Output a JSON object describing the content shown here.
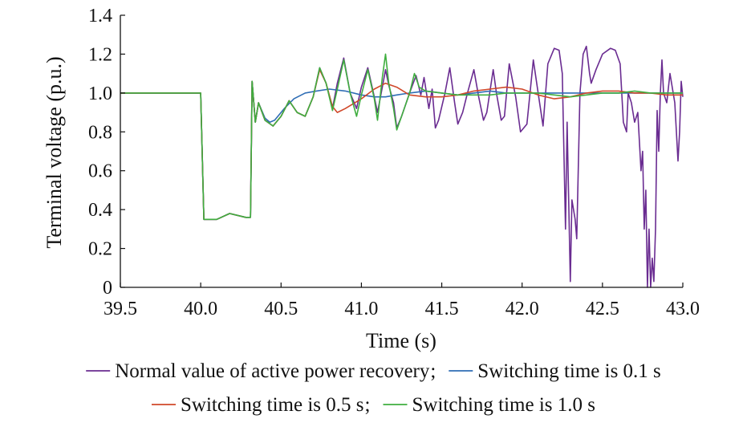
{
  "chart_data": {
    "type": "line",
    "title": "",
    "xlabel": "Time (s)",
    "ylabel": "Terminal voltage (p.u.)",
    "xlim": [
      39.5,
      43.0
    ],
    "ylim": [
      0,
      1.4
    ],
    "x_ticks": [
      "39.5",
      "40.0",
      "40.5",
      "41.0",
      "41.5",
      "42.0",
      "42.5",
      "43.0"
    ],
    "y_ticks": [
      "0",
      "0.2",
      "0.4",
      "0.6",
      "0.8",
      "1.0",
      "1.2",
      "1.4"
    ],
    "grid": false,
    "legend_position": "bottom",
    "legend_separators": [
      ";",
      ";"
    ],
    "series": [
      {
        "name": "Normal value of active power recovery",
        "color": "#6a2c91",
        "points": [
          [
            39.5,
            1.0
          ],
          [
            40.0,
            1.0
          ],
          [
            40.02,
            0.35
          ],
          [
            40.1,
            0.35
          ],
          [
            40.18,
            0.38
          ],
          [
            40.28,
            0.36
          ],
          [
            40.31,
            0.36
          ],
          [
            40.32,
            1.06
          ],
          [
            40.34,
            0.85
          ],
          [
            40.36,
            0.95
          ],
          [
            40.4,
            0.86
          ],
          [
            40.45,
            0.83
          ],
          [
            40.5,
            0.88
          ],
          [
            40.55,
            0.96
          ],
          [
            40.6,
            0.9
          ],
          [
            40.65,
            0.88
          ],
          [
            40.7,
            0.98
          ],
          [
            40.74,
            1.13
          ],
          [
            40.78,
            1.05
          ],
          [
            40.82,
            0.92
          ],
          [
            40.85,
            1.05
          ],
          [
            40.89,
            1.18
          ],
          [
            40.93,
            1.0
          ],
          [
            40.97,
            0.92
          ],
          [
            41.0,
            1.03
          ],
          [
            41.04,
            1.13
          ],
          [
            41.08,
            0.98
          ],
          [
            41.1,
            0.9
          ],
          [
            41.13,
            1.03
          ],
          [
            41.15,
            1.12
          ],
          [
            41.17,
            1.04
          ],
          [
            41.2,
            0.95
          ],
          [
            41.22,
            0.82
          ],
          [
            41.25,
            0.88
          ],
          [
            41.3,
            1.0
          ],
          [
            41.34,
            1.09
          ],
          [
            41.37,
            0.99
          ],
          [
            41.39,
            1.08
          ],
          [
            41.42,
            0.92
          ],
          [
            41.44,
            1.02
          ],
          [
            41.46,
            0.82
          ],
          [
            41.48,
            0.86
          ],
          [
            41.52,
            1.0
          ],
          [
            41.55,
            1.13
          ],
          [
            41.58,
            0.95
          ],
          [
            41.6,
            0.84
          ],
          [
            41.63,
            0.9
          ],
          [
            41.66,
            1.0
          ],
          [
            41.7,
            1.12
          ],
          [
            41.73,
            0.98
          ],
          [
            41.76,
            0.86
          ],
          [
            41.78,
            0.9
          ],
          [
            41.82,
            1.12
          ],
          [
            41.84,
            1.0
          ],
          [
            41.87,
            0.86
          ],
          [
            41.89,
            0.88
          ],
          [
            41.92,
            1.15
          ],
          [
            41.96,
            0.98
          ],
          [
            41.99,
            0.8
          ],
          [
            42.03,
            0.84
          ],
          [
            42.07,
            1.17
          ],
          [
            42.1,
            1.0
          ],
          [
            42.13,
            0.83
          ],
          [
            42.16,
            1.15
          ],
          [
            42.2,
            1.23
          ],
          [
            42.23,
            1.22
          ],
          [
            42.25,
            1.1
          ],
          [
            42.27,
            0.3
          ],
          [
            42.28,
            0.85
          ],
          [
            42.3,
            0.03
          ],
          [
            42.31,
            0.45
          ],
          [
            42.33,
            0.35
          ],
          [
            42.34,
            0.25
          ],
          [
            42.36,
            1.0
          ],
          [
            42.38,
            1.2
          ],
          [
            42.4,
            1.24
          ],
          [
            42.42,
            1.1
          ],
          [
            42.43,
            1.05
          ],
          [
            42.46,
            1.12
          ],
          [
            42.5,
            1.2
          ],
          [
            42.55,
            1.23
          ],
          [
            42.58,
            1.22
          ],
          [
            42.61,
            1.15
          ],
          [
            42.63,
            0.85
          ],
          [
            42.65,
            0.8
          ],
          [
            42.66,
            1.0
          ],
          [
            42.68,
            0.95
          ],
          [
            42.7,
            0.85
          ],
          [
            42.72,
            0.9
          ],
          [
            42.74,
            0.6
          ],
          [
            42.75,
            0.7
          ],
          [
            42.76,
            0.3
          ],
          [
            42.77,
            0.5
          ],
          [
            42.78,
            0.0
          ],
          [
            42.79,
            0.3
          ],
          [
            42.8,
            0.0
          ],
          [
            42.81,
            0.15
          ],
          [
            42.82,
            0.03
          ],
          [
            42.83,
            0.3
          ],
          [
            42.84,
            0.91
          ],
          [
            42.85,
            0.7
          ],
          [
            42.86,
            1.0
          ],
          [
            42.87,
            1.17
          ],
          [
            42.88,
            1.0
          ],
          [
            42.9,
            0.95
          ],
          [
            42.92,
            1.1
          ],
          [
            42.95,
            0.95
          ],
          [
            42.97,
            0.65
          ],
          [
            42.98,
            0.8
          ],
          [
            42.99,
            1.06
          ],
          [
            43.0,
            0.98
          ]
        ]
      },
      {
        "name": "Switching time is 0.1 s",
        "color": "#2f6db5",
        "points": [
          [
            39.5,
            1.0
          ],
          [
            40.0,
            1.0
          ],
          [
            40.02,
            0.35
          ],
          [
            40.1,
            0.35
          ],
          [
            40.18,
            0.38
          ],
          [
            40.28,
            0.36
          ],
          [
            40.31,
            0.36
          ],
          [
            40.32,
            1.06
          ],
          [
            40.34,
            0.85
          ],
          [
            40.36,
            0.95
          ],
          [
            40.4,
            0.87
          ],
          [
            40.43,
            0.85
          ],
          [
            40.46,
            0.86
          ],
          [
            40.52,
            0.92
          ],
          [
            40.58,
            0.97
          ],
          [
            40.65,
            1.0
          ],
          [
            40.72,
            1.01
          ],
          [
            40.8,
            1.02
          ],
          [
            40.9,
            1.01
          ],
          [
            41.0,
            0.99
          ],
          [
            41.08,
            0.98
          ],
          [
            41.15,
            0.98
          ],
          [
            41.22,
            0.99
          ],
          [
            41.3,
            1.0
          ],
          [
            41.4,
            1.01
          ],
          [
            41.5,
            1.0
          ],
          [
            41.6,
            0.99
          ],
          [
            41.7,
            1.0
          ],
          [
            41.8,
            1.01
          ],
          [
            41.9,
            1.0
          ],
          [
            42.0,
            1.0
          ],
          [
            42.2,
            1.0
          ],
          [
            42.4,
            1.0
          ],
          [
            42.6,
            1.0
          ],
          [
            42.8,
            1.0
          ],
          [
            43.0,
            1.0
          ]
        ]
      },
      {
        "name": "Switching time is 0.5 s",
        "color": "#d0482a",
        "points": [
          [
            39.5,
            1.0
          ],
          [
            40.0,
            1.0
          ],
          [
            40.02,
            0.35
          ],
          [
            40.1,
            0.35
          ],
          [
            40.18,
            0.38
          ],
          [
            40.28,
            0.36
          ],
          [
            40.31,
            0.36
          ],
          [
            40.32,
            1.06
          ],
          [
            40.34,
            0.85
          ],
          [
            40.36,
            0.95
          ],
          [
            40.4,
            0.86
          ],
          [
            40.45,
            0.83
          ],
          [
            40.5,
            0.88
          ],
          [
            40.55,
            0.96
          ],
          [
            40.6,
            0.9
          ],
          [
            40.65,
            0.88
          ],
          [
            40.7,
            0.98
          ],
          [
            40.74,
            1.12
          ],
          [
            40.78,
            1.05
          ],
          [
            40.82,
            0.93
          ],
          [
            40.85,
            0.9
          ],
          [
            40.9,
            0.92
          ],
          [
            41.0,
            0.97
          ],
          [
            41.08,
            1.02
          ],
          [
            41.15,
            1.05
          ],
          [
            41.22,
            1.03
          ],
          [
            41.3,
            0.99
          ],
          [
            41.4,
            0.98
          ],
          [
            41.5,
            0.98
          ],
          [
            41.6,
            0.99
          ],
          [
            41.7,
            1.01
          ],
          [
            41.8,
            1.02
          ],
          [
            41.9,
            1.03
          ],
          [
            42.0,
            1.02
          ],
          [
            42.1,
            0.99
          ],
          [
            42.2,
            0.97
          ],
          [
            42.3,
            0.98
          ],
          [
            42.4,
            1.0
          ],
          [
            42.5,
            1.01
          ],
          [
            42.6,
            1.01
          ],
          [
            42.7,
            1.0
          ],
          [
            42.8,
            1.0
          ],
          [
            42.9,
            0.99
          ],
          [
            43.0,
            0.99
          ]
        ]
      },
      {
        "name": "Switching time is 1.0 s",
        "color": "#3fae3f",
        "points": [
          [
            39.5,
            1.0
          ],
          [
            40.0,
            1.0
          ],
          [
            40.02,
            0.35
          ],
          [
            40.1,
            0.35
          ],
          [
            40.18,
            0.38
          ],
          [
            40.28,
            0.36
          ],
          [
            40.31,
            0.36
          ],
          [
            40.32,
            1.06
          ],
          [
            40.34,
            0.85
          ],
          [
            40.36,
            0.95
          ],
          [
            40.4,
            0.86
          ],
          [
            40.45,
            0.83
          ],
          [
            40.5,
            0.88
          ],
          [
            40.55,
            0.96
          ],
          [
            40.6,
            0.9
          ],
          [
            40.65,
            0.88
          ],
          [
            40.7,
            0.98
          ],
          [
            40.74,
            1.13
          ],
          [
            40.78,
            1.05
          ],
          [
            40.82,
            0.91
          ],
          [
            40.85,
            1.02
          ],
          [
            40.89,
            1.17
          ],
          [
            40.93,
            1.0
          ],
          [
            40.97,
            0.88
          ],
          [
            41.0,
            0.99
          ],
          [
            41.04,
            1.12
          ],
          [
            41.08,
            0.97
          ],
          [
            41.1,
            0.86
          ],
          [
            41.13,
            1.08
          ],
          [
            41.15,
            1.2
          ],
          [
            41.17,
            1.05
          ],
          [
            41.2,
            0.92
          ],
          [
            41.22,
            0.81
          ],
          [
            41.25,
            0.88
          ],
          [
            41.3,
            1.0
          ],
          [
            41.33,
            1.1
          ],
          [
            41.36,
            1.03
          ],
          [
            41.4,
            1.01
          ],
          [
            41.5,
            1.0
          ],
          [
            41.6,
            0.99
          ],
          [
            41.7,
            0.99
          ],
          [
            41.8,
            0.99
          ],
          [
            41.9,
            1.0
          ],
          [
            42.0,
            1.0
          ],
          [
            42.1,
            1.0
          ],
          [
            42.2,
            0.99
          ],
          [
            42.3,
            0.98
          ],
          [
            42.4,
            0.99
          ],
          [
            42.5,
            1.0
          ],
          [
            42.6,
            1.0
          ],
          [
            42.7,
            1.01
          ],
          [
            42.8,
            1.0
          ],
          [
            42.9,
            1.0
          ],
          [
            43.0,
            1.0
          ]
        ]
      }
    ]
  }
}
